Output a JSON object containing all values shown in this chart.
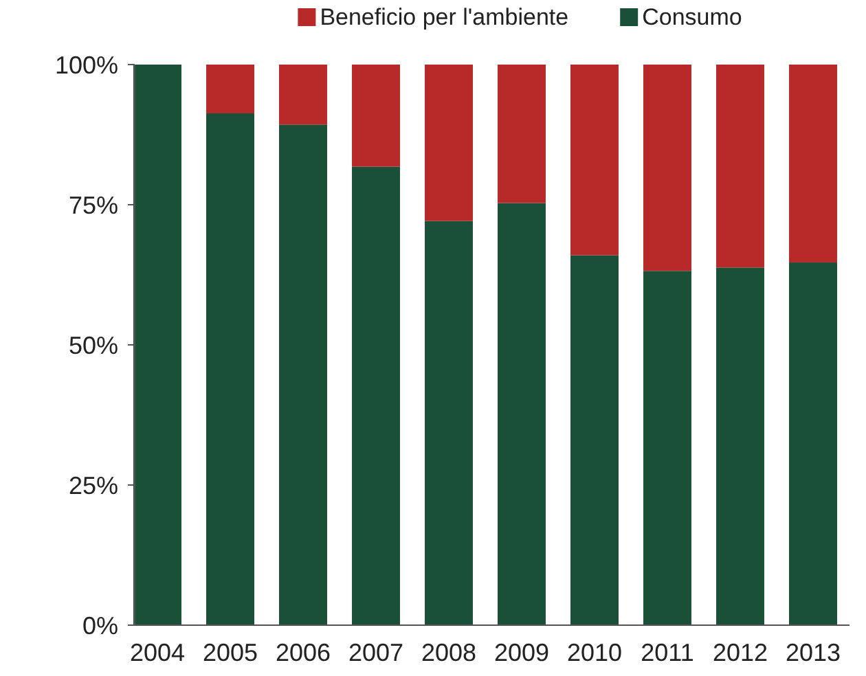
{
  "chart_data": {
    "type": "bar",
    "stacked": true,
    "categories": [
      "2004",
      "2005",
      "2006",
      "2007",
      "2008",
      "2009",
      "2010",
      "2011",
      "2012",
      "2013"
    ],
    "series": [
      {
        "name": "Consumo",
        "color": "#1a4f38",
        "values": [
          100,
          91.3,
          89.3,
          81.8,
          72.1,
          75.3,
          66.0,
          63.2,
          63.8,
          64.7
        ]
      },
      {
        "name": "Beneficio per l'ambiente",
        "color": "#b8292a",
        "values": [
          0,
          8.7,
          10.7,
          18.2,
          27.9,
          24.7,
          34.0,
          36.8,
          36.2,
          35.3
        ]
      }
    ],
    "ylim": [
      0,
      100
    ],
    "yticks": [
      {
        "value": 0,
        "label": "0%"
      },
      {
        "value": 25,
        "label": "25%"
      },
      {
        "value": 50,
        "label": "50%"
      },
      {
        "value": 75,
        "label": "75%"
      },
      {
        "value": 100,
        "label": "100%"
      }
    ],
    "legend": "top"
  }
}
